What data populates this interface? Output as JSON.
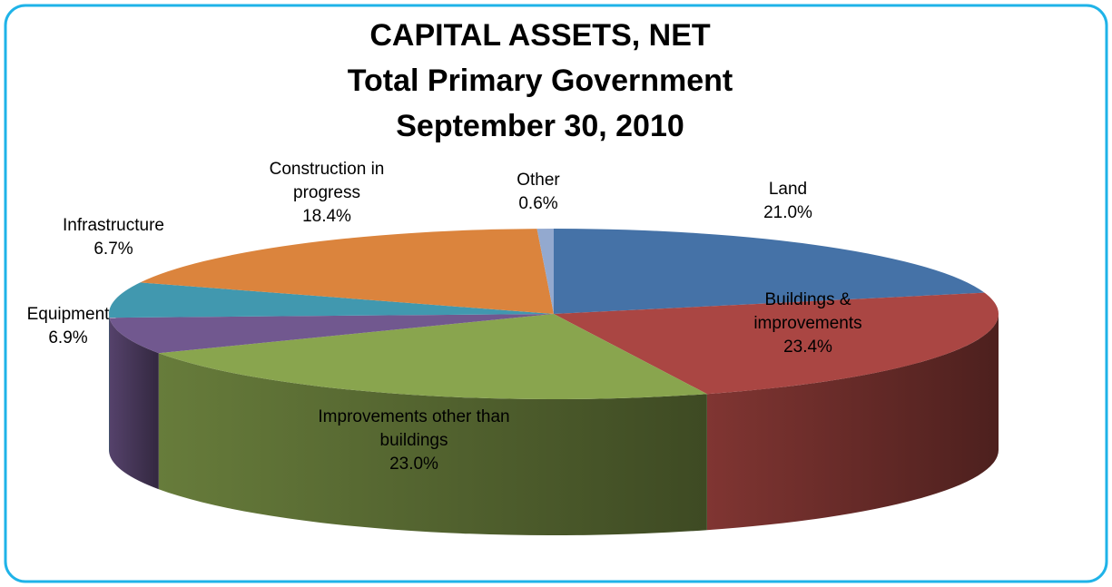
{
  "chart_data": {
    "type": "pie3d",
    "title": [
      "CAPITAL ASSETS, NET",
      "Total Primary Government",
      "September 30, 2010"
    ],
    "categories": [
      "Land",
      "Buildings & improvements",
      "Improvements other than buildings",
      "Equipment",
      "Infrastructure",
      "Construction in progress",
      "Other"
    ],
    "values": [
      21.0,
      23.4,
      23.0,
      6.9,
      6.7,
      18.4,
      0.6
    ],
    "value_labels": [
      "21.0%",
      "23.4%",
      "23.0%",
      "6.9%",
      "6.7%",
      "18.4%",
      "0.6%"
    ],
    "colors": [
      "#4572a7",
      "#aa4643",
      "#89a54e",
      "#71588f",
      "#4198af",
      "#db843d",
      "#93a9cf"
    ]
  }
}
